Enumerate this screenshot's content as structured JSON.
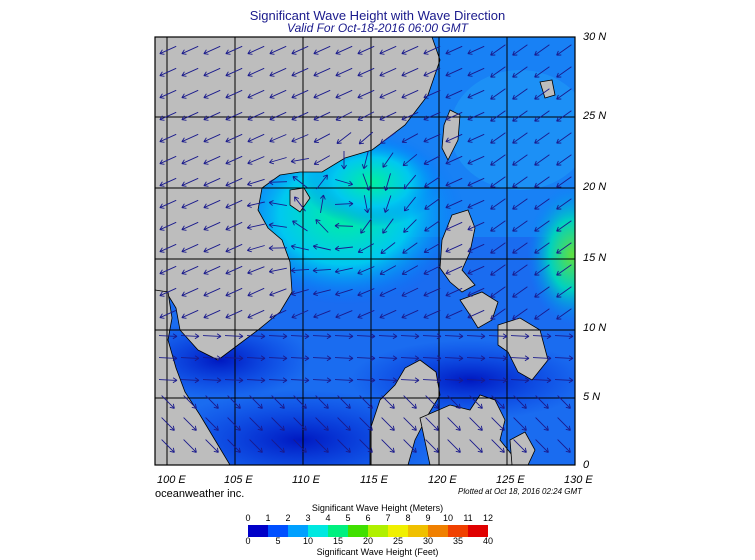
{
  "title": "Significant Wave Height with Wave Direction",
  "subtitle": "Valid For Oct-18-2016 06:00 GMT",
  "map": {
    "lon_labels": [
      "100 E",
      "105 E",
      "110 E",
      "115 E",
      "120 E",
      "125 E",
      "130 E"
    ],
    "lat_labels": [
      "30 N",
      "25 N",
      "20 N",
      "15 N",
      "10 N",
      "5 N",
      "0"
    ],
    "lon_range": [
      99,
      130
    ],
    "lat_range": [
      0,
      30
    ],
    "land_color": "#bdbdbd",
    "grid_color": "#000000",
    "arrow_color": "#1a1a8c"
  },
  "credit": "oceanweather inc.",
  "plotted": "Plotted at Oct 18, 2016 02:24 GMT",
  "colorbar": {
    "meters_title": "Significant Wave Height (Meters)",
    "feet_title": "Significant Wave Height (Feet)",
    "meters_ticks": [
      "0",
      "1",
      "2",
      "3",
      "4",
      "5",
      "6",
      "7",
      "8",
      "9",
      "10",
      "11",
      "12"
    ],
    "feet_ticks": [
      "0",
      "5",
      "10",
      "15",
      "20",
      "25",
      "30",
      "35",
      "40"
    ],
    "colors": [
      "#0000c8",
      "#0050ff",
      "#00a0ff",
      "#00e8e0",
      "#00f080",
      "#40e000",
      "#b0f000",
      "#f0f000",
      "#f0c000",
      "#f08000",
      "#f04000",
      "#e00000"
    ]
  }
}
